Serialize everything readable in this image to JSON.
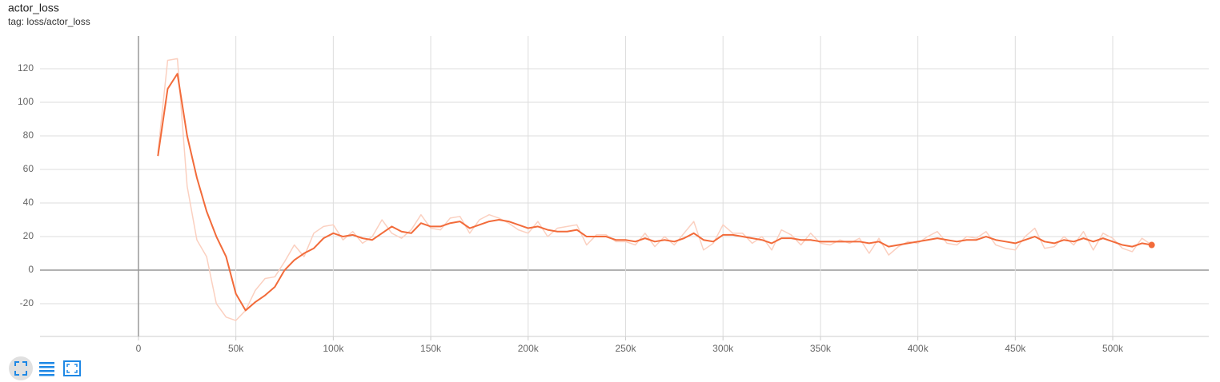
{
  "chart_data": {
    "type": "line",
    "title": "actor_loss",
    "subtitle": "tag: loss/actor_loss",
    "x": [
      10000,
      15000,
      20000,
      25000,
      30000,
      35000,
      40000,
      45000,
      50000,
      55000,
      60000,
      65000,
      70000,
      75000,
      80000,
      85000,
      90000,
      95000,
      100000,
      105000,
      110000,
      115000,
      120000,
      125000,
      130000,
      135000,
      140000,
      145000,
      150000,
      155000,
      160000,
      165000,
      170000,
      175000,
      180000,
      185000,
      190000,
      195000,
      200000,
      205000,
      210000,
      215000,
      220000,
      225000,
      230000,
      235000,
      240000,
      245000,
      250000,
      255000,
      260000,
      265000,
      270000,
      275000,
      280000,
      285000,
      290000,
      295000,
      300000,
      305000,
      310000,
      315000,
      320000,
      325000,
      330000,
      335000,
      340000,
      345000,
      350000,
      355000,
      360000,
      365000,
      370000,
      375000,
      380000,
      385000,
      390000,
      395000,
      400000,
      405000,
      410000,
      415000,
      420000,
      425000,
      430000,
      435000,
      440000,
      445000,
      450000,
      455000,
      460000,
      465000,
      470000,
      475000,
      480000,
      485000,
      490000,
      495000,
      500000,
      505000,
      510000,
      515000,
      520000
    ],
    "series": [
      {
        "color": "#fbd0c0",
        "values": [
          70,
          125,
          126,
          50,
          18,
          8,
          -20,
          -28,
          -30,
          -24,
          -12,
          -5,
          -4,
          5,
          15,
          8,
          22,
          26,
          27,
          18,
          23,
          16,
          20,
          30,
          22,
          19,
          24,
          33,
          25,
          24,
          31,
          32,
          22,
          30,
          33,
          31,
          28,
          24,
          22,
          29,
          20,
          25,
          26,
          27,
          15,
          21,
          21,
          17,
          17,
          15,
          22,
          14,
          20,
          15,
          22,
          29,
          12,
          16,
          27,
          22,
          22,
          16,
          20,
          12,
          24,
          21,
          15,
          22,
          16,
          15,
          18,
          16,
          19,
          10,
          19,
          9,
          14,
          17,
          16,
          20,
          23,
          16,
          15,
          20,
          19,
          23,
          15,
          13,
          12,
          20,
          25,
          13,
          14,
          20,
          15,
          23,
          12,
          22,
          19,
          13,
          11,
          19,
          15
        ]
      },
      {
        "color": "#f26b3a",
        "values": [
          68,
          108,
          117,
          80,
          55,
          35,
          20,
          8,
          -14,
          -24,
          -19,
          -15,
          -10,
          0,
          6,
          10,
          13,
          19,
          22,
          20,
          21,
          19,
          18,
          22,
          26,
          23,
          22,
          28,
          26,
          26,
          28,
          29,
          25,
          27,
          29,
          30,
          29,
          27,
          25,
          26,
          24,
          23,
          23,
          24,
          20,
          20,
          20,
          18,
          18,
          17,
          19,
          17,
          18,
          17,
          19,
          22,
          18,
          17,
          21,
          21,
          20,
          19,
          18,
          16,
          19,
          19,
          18,
          18,
          17,
          17,
          17,
          17,
          17,
          16,
          17,
          14,
          15,
          16,
          17,
          18,
          19,
          18,
          17,
          18,
          18,
          20,
          18,
          17,
          16,
          18,
          20,
          17,
          16,
          18,
          17,
          19,
          17,
          19,
          17,
          15,
          14,
          16,
          15
        ]
      }
    ],
    "xlim": [
      -50500,
      549300
    ],
    "ylim": [
      -39.5,
      139.5
    ],
    "xticks": [
      0,
      {
        "value": 50000,
        "label": "50k"
      },
      {
        "value": 100000,
        "label": "100k"
      },
      {
        "value": 150000,
        "label": "150k"
      },
      {
        "value": 200000,
        "label": "200k"
      },
      {
        "value": 250000,
        "label": "250k"
      },
      {
        "value": 300000,
        "label": "300k"
      },
      {
        "value": 350000,
        "label": "350k"
      },
      {
        "value": 400000,
        "label": "400k"
      },
      {
        "value": 450000,
        "label": "450k"
      },
      {
        "value": 500000,
        "label": "500k"
      }
    ],
    "yticks": [
      -20,
      0,
      20,
      40,
      60,
      80,
      100,
      120
    ],
    "grid": true
  }
}
